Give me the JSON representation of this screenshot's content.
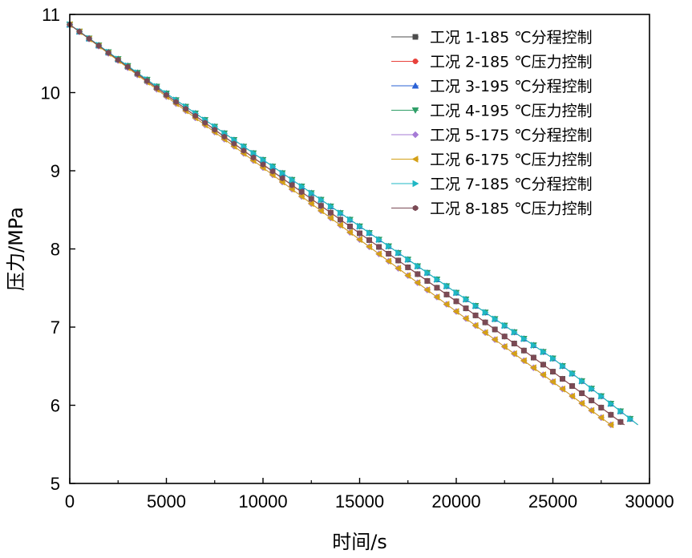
{
  "chart_data": {
    "type": "line",
    "xlabel": "时间/s",
    "ylabel": "压力/MPa",
    "xlim": [
      0,
      30000
    ],
    "ylim": [
      5,
      11
    ],
    "xticks": [
      0,
      5000,
      10000,
      15000,
      20000,
      25000,
      30000
    ],
    "xtick_labels": [
      "0",
      "5000",
      "10000",
      "15000",
      "20000",
      "25000",
      "30000"
    ],
    "yticks": [
      5,
      6,
      7,
      8,
      9,
      10,
      11
    ],
    "ytick_labels": [
      "5",
      "6",
      "7",
      "8",
      "9",
      "10",
      "11"
    ],
    "grid": false,
    "legend_position": "top-right",
    "series": [
      {
        "name": "工况 1-185 ℃分程控制",
        "color": "#4d4d4d",
        "marker": "square",
        "x": [
          0,
          5000,
          10000,
          15000,
          20000,
          25000,
          28700
        ],
        "y": [
          10.87,
          9.97,
          9.08,
          8.2,
          7.33,
          6.43,
          5.75
        ]
      },
      {
        "name": "工况 2-185 ℃压力控制",
        "color": "#e8413b",
        "marker": "circle",
        "x": [
          0,
          5000,
          10000,
          15000,
          20000,
          25000,
          28700
        ],
        "y": [
          10.87,
          9.97,
          9.08,
          8.2,
          7.33,
          6.43,
          5.75
        ]
      },
      {
        "name": "工况 3-195 ℃分程控制",
        "color": "#2a62d6",
        "marker": "triangle-up",
        "x": [
          0,
          5000,
          10000,
          15000,
          20000,
          25000,
          29400
        ],
        "y": [
          10.87,
          9.99,
          9.14,
          8.29,
          7.44,
          6.6,
          5.75
        ]
      },
      {
        "name": "工况 4-195 ℃压力控制",
        "color": "#2e9e67",
        "marker": "triangle-down",
        "x": [
          0,
          5000,
          10000,
          15000,
          20000,
          25000,
          29400
        ],
        "y": [
          10.87,
          9.99,
          9.14,
          8.29,
          7.44,
          6.6,
          5.75
        ]
      },
      {
        "name": "工况 5-175 ℃分程控制",
        "color": "#a67bd6",
        "marker": "diamond",
        "x": [
          0,
          5000,
          10000,
          15000,
          20000,
          25000,
          28000
        ],
        "y": [
          10.87,
          9.95,
          9.04,
          8.12,
          7.2,
          6.3,
          5.75
        ]
      },
      {
        "name": "工况 6-175 ℃压力控制",
        "color": "#d4a017",
        "marker": "triangle-left",
        "x": [
          0,
          5000,
          10000,
          15000,
          20000,
          25000,
          28000
        ],
        "y": [
          10.87,
          9.95,
          9.04,
          8.12,
          7.2,
          6.3,
          5.75
        ]
      },
      {
        "name": "工况 7-185 ℃分程控制",
        "color": "#1fb7c4",
        "marker": "triangle-right",
        "x": [
          0,
          5000,
          10000,
          15000,
          20000,
          25000,
          29400
        ],
        "y": [
          10.87,
          9.99,
          9.14,
          8.29,
          7.44,
          6.6,
          5.75
        ]
      },
      {
        "name": "工况 8-185 ℃压力控制",
        "color": "#7a4a55",
        "marker": "hexagon",
        "x": [
          0,
          5000,
          10000,
          15000,
          20000,
          25000,
          28700
        ],
        "y": [
          10.87,
          9.97,
          9.08,
          8.2,
          7.33,
          6.43,
          5.75
        ]
      }
    ]
  }
}
